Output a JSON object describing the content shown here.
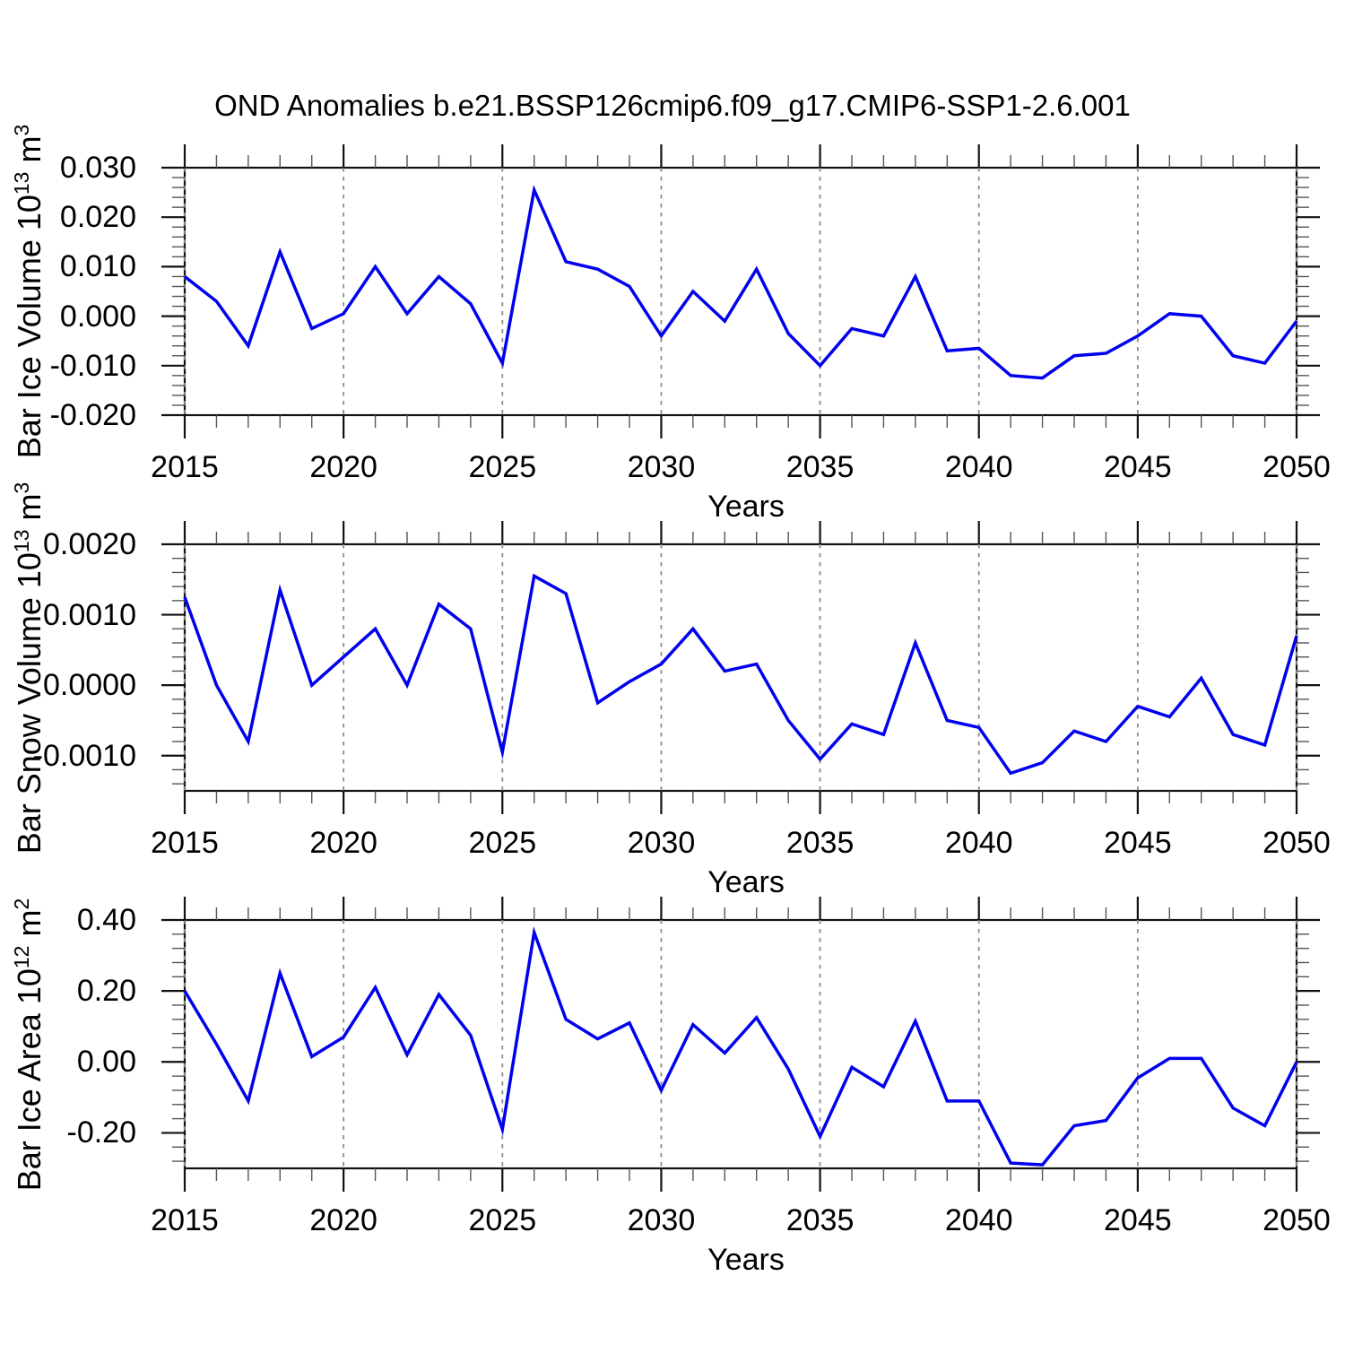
{
  "page": {
    "title": "OND Anomalies b.e21.BSSP126cmip6.f09_g17.CMIP6-SSP1-2.6.001",
    "background": "#ffffff"
  },
  "colors": {
    "line": "#0000ee",
    "frame": "#111111",
    "minor_tick": "#555555",
    "grid": "#8c8c8c",
    "text": "#000000"
  },
  "chart_data": {
    "type": "line",
    "title": "OND Anomalies b.e21.BSSP126cmip6.f09_g17.CMIP6-SSP1-2.6.001",
    "xlabel": "Years",
    "legend": "none",
    "grid": "vertical-dashed-at-5yr-majors",
    "x_range": [
      2015,
      2050
    ],
    "x_major_step": 5,
    "x_minor_step": 1,
    "x_tick_labels": [
      "2015",
      "2020",
      "2025",
      "2030",
      "2035",
      "2040",
      "2045",
      "2050"
    ],
    "x": [
      2015,
      2016,
      2017,
      2018,
      2019,
      2020,
      2021,
      2022,
      2023,
      2024,
      2025,
      2026,
      2027,
      2028,
      2029,
      2030,
      2031,
      2032,
      2033,
      2034,
      2035,
      2036,
      2037,
      2038,
      2039,
      2040,
      2041,
      2042,
      2043,
      2044,
      2045,
      2046,
      2047,
      2048,
      2049,
      2050
    ],
    "panels": [
      {
        "id": "bar-ice-volume",
        "ylabel": "Bar Ice Volume 10^13 m^3",
        "ylabel_parts": {
          "prefix": "Bar Ice Volume 10",
          "exp": "13",
          "unit": " m",
          "unit_exp": "3"
        },
        "ylim": [
          -0.02,
          0.03
        ],
        "yminor": 0.002,
        "yticks": [
          {
            "v": 0.03,
            "label": "0.030"
          },
          {
            "v": 0.02,
            "label": "0.020"
          },
          {
            "v": 0.01,
            "label": "0.010"
          },
          {
            "v": 0.0,
            "label": "0.000"
          },
          {
            "v": -0.01,
            "label": "-0.010"
          },
          {
            "v": -0.02,
            "label": "-0.020"
          }
        ],
        "values": [
          0.008,
          0.003,
          -0.006,
          0.013,
          -0.0025,
          0.0005,
          0.01,
          0.0005,
          0.008,
          0.0025,
          -0.0095,
          0.0255,
          0.011,
          0.0095,
          0.006,
          -0.004,
          0.005,
          -0.001,
          0.0095,
          -0.0035,
          -0.01,
          -0.0025,
          -0.004,
          0.008,
          -0.007,
          -0.0065,
          -0.012,
          -0.0125,
          -0.008,
          -0.0075,
          -0.004,
          0.0005,
          0.0,
          -0.008,
          -0.0095,
          -0.001
        ]
      },
      {
        "id": "bar-snow-volume",
        "ylabel": "Bar Snow Volume 10^13 m^3",
        "ylabel_parts": {
          "prefix": "Bar Snow Volume 10",
          "exp": "13",
          "unit": " m",
          "unit_exp": "3"
        },
        "ylim": [
          -0.0015,
          0.002
        ],
        "yminor": 0.0002,
        "yticks": [
          {
            "v": 0.002,
            "label": "0.0020"
          },
          {
            "v": 0.001,
            "label": "0.0010"
          },
          {
            "v": 0.0,
            "label": "0.0000"
          },
          {
            "v": -0.001,
            "label": "-0.0010"
          }
        ],
        "values": [
          0.00125,
          0.0,
          -0.0008,
          0.00135,
          0.0,
          0.0004,
          0.0008,
          0.0,
          0.00115,
          0.0008,
          -0.00095,
          0.00155,
          0.0013,
          -0.00025,
          5e-05,
          0.0003,
          0.0008,
          0.0002,
          0.0003,
          -0.0005,
          -0.00105,
          -0.00055,
          -0.0007,
          0.0006,
          -0.0005,
          -0.0006,
          -0.00125,
          -0.0011,
          -0.00065,
          -0.0008,
          -0.0003,
          -0.00045,
          0.0001,
          -0.0007,
          -0.00085,
          0.0007
        ]
      },
      {
        "id": "bar-ice-area",
        "ylabel": "Bar Ice Area 10^12 m^2",
        "ylabel_parts": {
          "prefix": "Bar Ice Area 10",
          "exp": "12",
          "unit": " m",
          "unit_exp": "2"
        },
        "ylim": [
          -0.3,
          0.4
        ],
        "yminor": 0.04,
        "yticks": [
          {
            "v": 0.4,
            "label": "0.40"
          },
          {
            "v": 0.2,
            "label": "0.20"
          },
          {
            "v": 0.0,
            "label": "0.00"
          },
          {
            "v": -0.2,
            "label": "-0.20"
          }
        ],
        "values": [
          0.2,
          0.05,
          -0.11,
          0.25,
          0.015,
          0.07,
          0.21,
          0.02,
          0.19,
          0.075,
          -0.19,
          0.365,
          0.12,
          0.065,
          0.11,
          -0.08,
          0.105,
          0.025,
          0.125,
          -0.02,
          -0.21,
          -0.015,
          -0.07,
          0.115,
          -0.11,
          -0.11,
          -0.285,
          -0.29,
          -0.18,
          -0.165,
          -0.045,
          0.01,
          0.01,
          -0.13,
          -0.18,
          0.0
        ]
      }
    ]
  }
}
